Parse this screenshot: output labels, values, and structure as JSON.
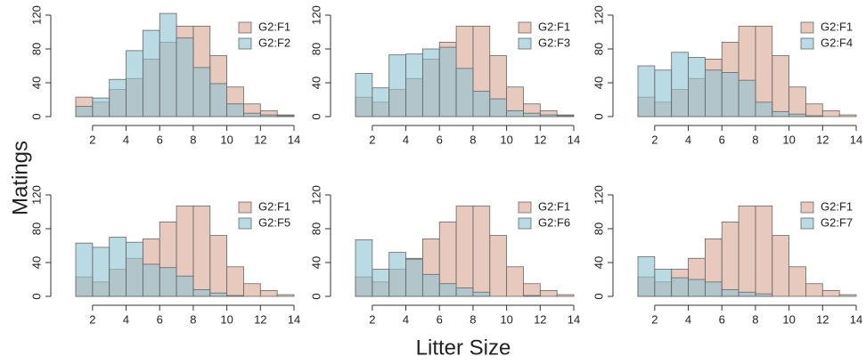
{
  "figure": {
    "ylabel": "Matings",
    "xlabel": "Litter Size"
  },
  "chart_data": [
    {
      "type": "histogram",
      "bins": [
        1,
        2,
        3,
        4,
        5,
        6,
        7,
        8,
        9,
        10,
        11,
        12,
        13,
        14
      ],
      "xlim": [
        1,
        14
      ],
      "ylim": [
        0,
        120
      ],
      "xticks": [
        2,
        4,
        6,
        8,
        10,
        12,
        14
      ],
      "yticks": [
        0,
        40,
        80,
        120
      ],
      "legend": "topright",
      "series": [
        {
          "name": "G2:F1",
          "color": "#d9a896",
          "values": [
            23,
            17,
            32,
            45,
            68,
            88,
            107,
            107,
            72,
            35,
            15,
            7,
            2
          ]
        },
        {
          "name": "G2:F2",
          "color": "#8fc3d3",
          "values": [
            12,
            22,
            44,
            78,
            102,
            122,
            93,
            58,
            39,
            15,
            4,
            2,
            1
          ]
        }
      ]
    },
    {
      "type": "histogram",
      "bins": [
        1,
        2,
        3,
        4,
        5,
        6,
        7,
        8,
        9,
        10,
        11,
        12,
        13,
        14
      ],
      "xlim": [
        1,
        14
      ],
      "ylim": [
        0,
        120
      ],
      "xticks": [
        2,
        4,
        6,
        8,
        10,
        12,
        14
      ],
      "yticks": [
        0,
        40,
        80,
        120
      ],
      "legend": "topright",
      "series": [
        {
          "name": "G2:F1",
          "color": "#d9a896",
          "values": [
            23,
            17,
            32,
            45,
            68,
            88,
            107,
            107,
            72,
            35,
            15,
            7,
            2
          ]
        },
        {
          "name": "G2:F3",
          "color": "#8fc3d3",
          "values": [
            51,
            34,
            73,
            74,
            80,
            82,
            57,
            30,
            21,
            7,
            4,
            2,
            1
          ]
        }
      ]
    },
    {
      "type": "histogram",
      "bins": [
        1,
        2,
        3,
        4,
        5,
        6,
        7,
        8,
        9,
        10,
        11,
        12,
        13,
        14
      ],
      "xlim": [
        1,
        14
      ],
      "ylim": [
        0,
        120
      ],
      "xticks": [
        2,
        4,
        6,
        8,
        10,
        12,
        14
      ],
      "yticks": [
        0,
        40,
        80,
        120
      ],
      "legend": "topright",
      "series": [
        {
          "name": "G2:F1",
          "color": "#d9a896",
          "values": [
            23,
            17,
            32,
            45,
            68,
            88,
            107,
            107,
            72,
            35,
            15,
            7,
            2
          ]
        },
        {
          "name": "G2:F4",
          "color": "#8fc3d3",
          "values": [
            60,
            55,
            76,
            70,
            55,
            52,
            43,
            17,
            6,
            3,
            1,
            0,
            0
          ]
        }
      ]
    },
    {
      "type": "histogram",
      "bins": [
        1,
        2,
        3,
        4,
        5,
        6,
        7,
        8,
        9,
        10,
        11,
        12,
        13,
        14
      ],
      "xlim": [
        1,
        14
      ],
      "ylim": [
        0,
        120
      ],
      "xticks": [
        2,
        4,
        6,
        8,
        10,
        12,
        14
      ],
      "yticks": [
        0,
        40,
        80,
        120
      ],
      "legend": "topright",
      "series": [
        {
          "name": "G2:F1",
          "color": "#d9a896",
          "values": [
            23,
            17,
            32,
            45,
            68,
            88,
            107,
            107,
            72,
            35,
            15,
            7,
            2
          ]
        },
        {
          "name": "G2:F5",
          "color": "#8fc3d3",
          "values": [
            63,
            58,
            70,
            64,
            38,
            34,
            24,
            8,
            4,
            1,
            0,
            0,
            0
          ]
        }
      ]
    },
    {
      "type": "histogram",
      "bins": [
        1,
        2,
        3,
        4,
        5,
        6,
        7,
        8,
        9,
        10,
        11,
        12,
        13,
        14
      ],
      "xlim": [
        1,
        14
      ],
      "ylim": [
        0,
        120
      ],
      "xticks": [
        2,
        4,
        6,
        8,
        10,
        12,
        14
      ],
      "yticks": [
        0,
        40,
        80,
        120
      ],
      "legend": "topright",
      "series": [
        {
          "name": "G2:F1",
          "color": "#d9a896",
          "values": [
            23,
            17,
            32,
            45,
            68,
            88,
            107,
            107,
            72,
            35,
            15,
            7,
            2
          ]
        },
        {
          "name": "G2:F6",
          "color": "#8fc3d3",
          "values": [
            67,
            32,
            52,
            44,
            26,
            15,
            10,
            5,
            0,
            0,
            1,
            0,
            0
          ]
        }
      ]
    },
    {
      "type": "histogram",
      "bins": [
        1,
        2,
        3,
        4,
        5,
        6,
        7,
        8,
        9,
        10,
        11,
        12,
        13,
        14
      ],
      "xlim": [
        1,
        14
      ],
      "ylim": [
        0,
        120
      ],
      "xticks": [
        2,
        4,
        6,
        8,
        10,
        12,
        14
      ],
      "yticks": [
        0,
        40,
        80,
        120
      ],
      "legend": "topright",
      "series": [
        {
          "name": "G2:F1",
          "color": "#d9a896",
          "values": [
            23,
            17,
            32,
            45,
            68,
            88,
            107,
            107,
            72,
            35,
            15,
            7,
            2
          ]
        },
        {
          "name": "G2:F7",
          "color": "#8fc3d3",
          "values": [
            47,
            32,
            22,
            20,
            17,
            8,
            5,
            3,
            0,
            0,
            0,
            0,
            0
          ]
        }
      ]
    }
  ]
}
